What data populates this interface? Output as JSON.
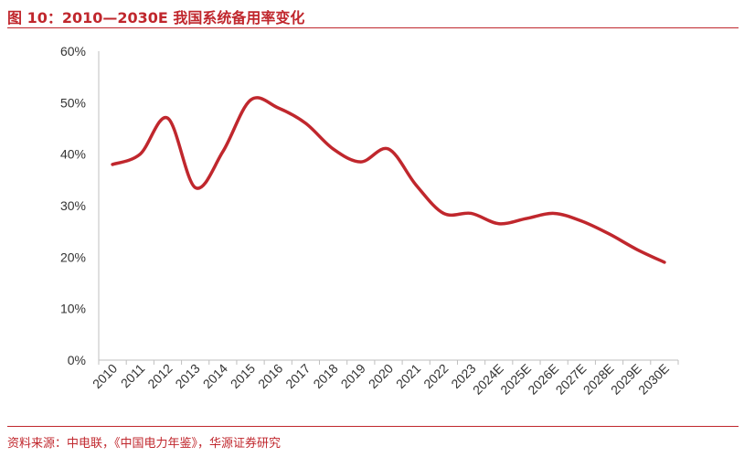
{
  "figure": {
    "title": "图 10：2010—2030E 我国系统备用率变化",
    "source": "资料来源：中电联，《中国电力年鉴》，华源证券研究"
  },
  "colors": {
    "accent": "#c0272d",
    "series": "#c0272d",
    "axis": "#bfbfbf",
    "text": "#333333"
  },
  "chart_data": {
    "type": "line",
    "title": "",
    "xlabel": "",
    "ylabel": "",
    "grid": false,
    "legend": "none",
    "ylim": [
      0,
      0.6
    ],
    "yticks": [
      "0%",
      "10%",
      "20%",
      "30%",
      "40%",
      "50%",
      "60%"
    ],
    "x": [
      "2010",
      "2011",
      "2012",
      "2013",
      "2014",
      "2015",
      "2016",
      "2017",
      "2018",
      "2019",
      "2020",
      "2021",
      "2022",
      "2023",
      "2024E",
      "2025E",
      "2026E",
      "2027E",
      "2028E",
      "2029E",
      "2030E"
    ],
    "series": [
      {
        "values": [
          0.38,
          0.4,
          0.47,
          0.335,
          0.405,
          0.505,
          0.49,
          0.46,
          0.41,
          0.385,
          0.41,
          0.34,
          0.285,
          0.285,
          0.265,
          0.275,
          0.285,
          0.27,
          0.245,
          0.215,
          0.19
        ]
      }
    ]
  }
}
